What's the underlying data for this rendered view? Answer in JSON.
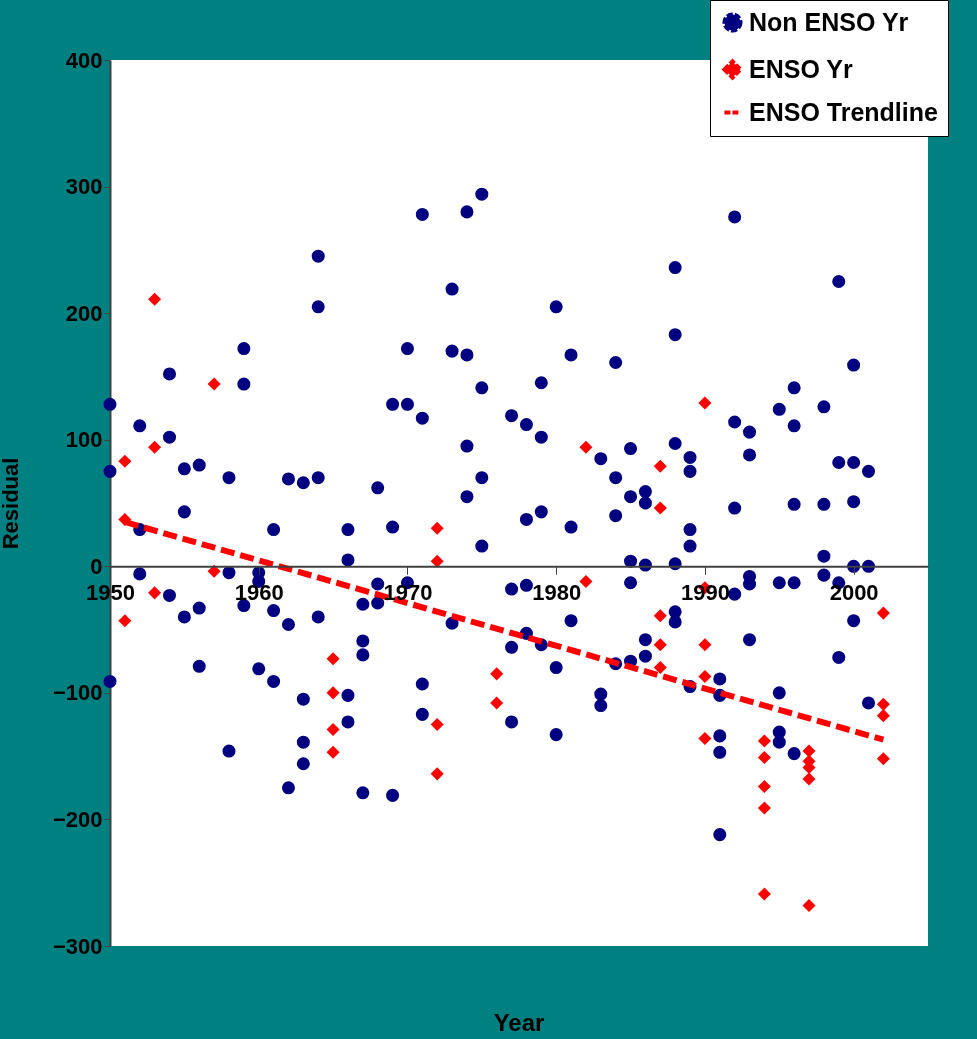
{
  "chart_data": {
    "type": "scatter",
    "xlabel": "Year",
    "ylabel": "Residual",
    "xlim": [
      1950,
      2005
    ],
    "xticks": [
      1950,
      1960,
      1970,
      1980,
      1990,
      2000
    ],
    "ylim": [
      -300,
      400
    ],
    "yticks": [
      -300,
      -200,
      -100,
      0,
      100,
      200,
      300,
      400
    ],
    "grid": false,
    "legend": "top right",
    "series": [
      {
        "name": "Non ENSO Yr",
        "marker": "circle",
        "color": "#000080",
        "x": [
          1950,
          1950,
          1950,
          1952,
          1952,
          1952,
          1954,
          1954,
          1954,
          1955,
          1955,
          1955,
          1956,
          1956,
          1956,
          1958,
          1958,
          1958,
          1959,
          1959,
          1959,
          1960,
          1960,
          1960,
          1961,
          1961,
          1961,
          1962,
          1962,
          1962,
          1963,
          1963,
          1963,
          1963,
          1964,
          1964,
          1964,
          1964,
          1966,
          1966,
          1966,
          1966,
          1967,
          1967,
          1967,
          1967,
          1968,
          1968,
          1968,
          1969,
          1969,
          1969,
          1970,
          1970,
          1970,
          1971,
          1971,
          1971,
          1971,
          1973,
          1973,
          1973,
          1974,
          1974,
          1974,
          1974,
          1975,
          1975,
          1975,
          1975,
          1977,
          1977,
          1977,
          1977,
          1978,
          1978,
          1978,
          1978,
          1979,
          1979,
          1979,
          1979,
          1980,
          1980,
          1980,
          1981,
          1981,
          1981,
          1983,
          1983,
          1983,
          1984,
          1984,
          1984,
          1984,
          1985,
          1985,
          1985,
          1985,
          1985,
          1986,
          1986,
          1986,
          1986,
          1986,
          1988,
          1988,
          1988,
          1988,
          1988,
          1988,
          1989,
          1989,
          1989,
          1989,
          1989,
          1991,
          1991,
          1991,
          1991,
          1991,
          1992,
          1992,
          1992,
          1992,
          1993,
          1993,
          1993,
          1993,
          1993,
          1995,
          1995,
          1995,
          1995,
          1995,
          1996,
          1996,
          1996,
          1996,
          1996,
          1998,
          1998,
          1998,
          1998,
          1999,
          1999,
          1999,
          1999,
          2000,
          2000,
          2000,
          2000,
          2000,
          2001,
          2001,
          2001
        ],
        "values": [
          128,
          75,
          -91,
          111,
          29,
          -6,
          152,
          102,
          -23,
          77,
          43,
          -40,
          80,
          -33,
          -79,
          70,
          -5,
          -146,
          172,
          144,
          -31,
          -5,
          -12,
          -81,
          29,
          -35,
          -91,
          69,
          -46,
          -175,
          66,
          -105,
          -139,
          -156,
          245,
          205,
          70,
          -40,
          29,
          5,
          -102,
          -123,
          -30,
          -59,
          -70,
          -179,
          62,
          -14,
          -29,
          128,
          31,
          -181,
          172,
          128,
          -13,
          278,
          117,
          -93,
          -117,
          219,
          170,
          -45,
          280,
          167,
          95,
          55,
          294,
          141,
          70,
          16,
          119,
          -18,
          -64,
          -123,
          112,
          37,
          -15,
          -53,
          145,
          102,
          43,
          -62,
          205,
          -80,
          -133,
          167,
          31,
          -43,
          85,
          -101,
          -110,
          161,
          70,
          40,
          -77,
          93,
          55,
          4,
          -13,
          -75,
          59,
          50,
          1,
          -58,
          -71,
          236,
          183,
          97,
          2,
          -36,
          -44,
          86,
          75,
          29,
          16,
          -95,
          -89,
          -102,
          -134,
          -147,
          -212,
          276,
          114,
          46,
          -22,
          106,
          88,
          -8,
          -14,
          -58,
          124,
          -13,
          -100,
          -131,
          -139,
          141,
          111,
          49,
          -13,
          -148,
          126,
          49,
          8,
          -7,
          225,
          82,
          -13,
          -72,
          159,
          82,
          51,
          0,
          -43,
          75,
          0,
          -108
        ]
      },
      {
        "name": "ENSO Yr",
        "marker": "diamond",
        "color": "#ff0000",
        "x": [
          1951,
          1951,
          1951,
          1953,
          1953,
          1953,
          1957,
          1957,
          1965,
          1965,
          1965,
          1965,
          1972,
          1972,
          1972,
          1972,
          1976,
          1976,
          1982,
          1982,
          1987,
          1987,
          1987,
          1987,
          1987,
          1990,
          1990,
          1990,
          1990,
          1990,
          1994,
          1994,
          1994,
          1994,
          1994,
          1997,
          1997,
          1997,
          1997,
          1997,
          2002,
          2002,
          2002,
          2002
        ],
        "values": [
          83,
          37,
          -43,
          211,
          94,
          -21,
          144,
          -4,
          -73,
          -100,
          -129,
          -147,
          30,
          4,
          -125,
          -164,
          -85,
          -108,
          94,
          -12,
          79,
          46,
          -39,
          -62,
          -80,
          129,
          -17,
          -62,
          -87,
          -136,
          -138,
          -151,
          -174,
          -191,
          -259,
          -146,
          -154,
          -159,
          -168,
          -268,
          -37,
          -109,
          -118,
          -152
        ]
      },
      {
        "name": "ENSO Trendline",
        "type": "line",
        "line_style": "dashed",
        "color": "#ff0000",
        "x": [
          1951,
          2002
        ],
        "values": [
          35,
          -137
        ]
      }
    ]
  }
}
